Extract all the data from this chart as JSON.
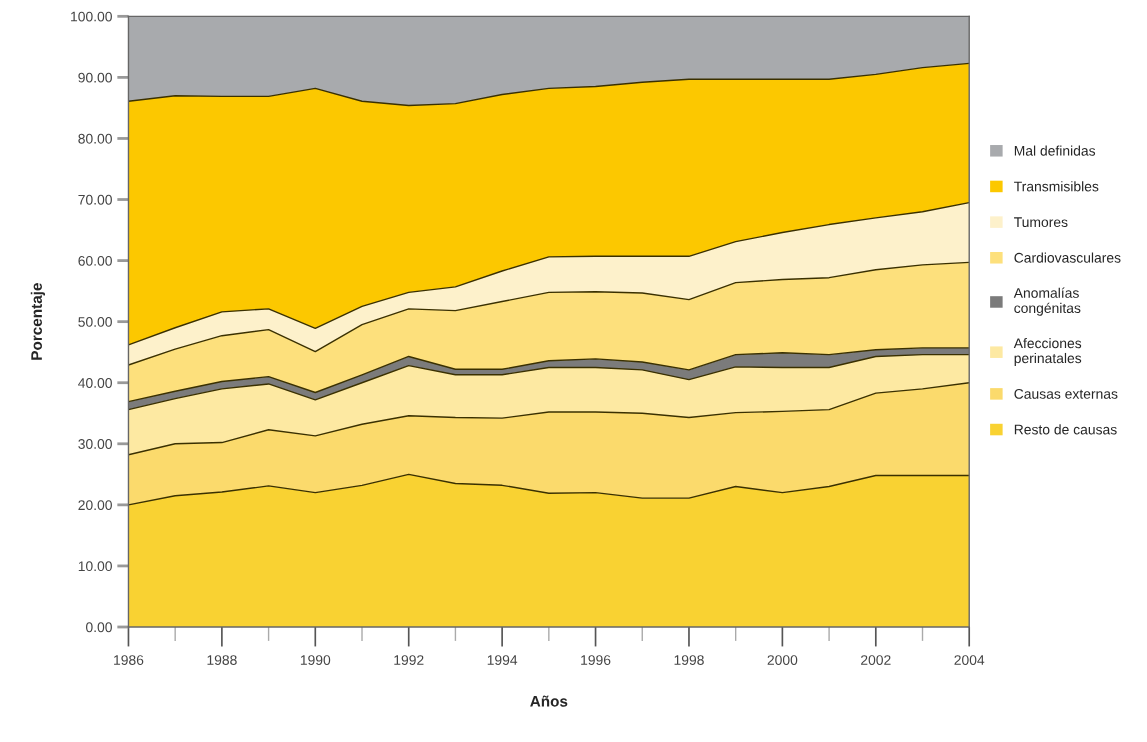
{
  "chart_data": {
    "type": "area",
    "stacked": true,
    "xlabel": "Años",
    "ylabel": "Porcentaje",
    "x": [
      1986,
      1987,
      1988,
      1989,
      1990,
      1991,
      1992,
      1993,
      1994,
      1995,
      1996,
      1997,
      1998,
      1999,
      2000,
      2001,
      2002,
      2003,
      2004
    ],
    "xlim": [
      1986,
      2004
    ],
    "xticks": [
      {
        "value": 1986,
        "label": "1986"
      },
      {
        "value": 1987,
        "label": null
      },
      {
        "value": 1988,
        "label": "1988"
      },
      {
        "value": 1989,
        "label": null
      },
      {
        "value": 1990,
        "label": "1990"
      },
      {
        "value": 1991,
        "label": null
      },
      {
        "value": 1992,
        "label": "1992"
      },
      {
        "value": 1993,
        "label": null
      },
      {
        "value": 1994,
        "label": "1994"
      },
      {
        "value": 1995,
        "label": null
      },
      {
        "value": 1996,
        "label": "1996"
      },
      {
        "value": 1997,
        "label": null
      },
      {
        "value": 1998,
        "label": "1998"
      },
      {
        "value": 1999,
        "label": null
      },
      {
        "value": 2000,
        "label": "2000"
      },
      {
        "value": 2001,
        "label": null
      },
      {
        "value": 2002,
        "label": "2002"
      },
      {
        "value": 2003,
        "label": null
      },
      {
        "value": 2004,
        "label": "2004"
      }
    ],
    "ylim": [
      0,
      100
    ],
    "yticks": [
      {
        "value": 0,
        "label": "0.00"
      },
      {
        "value": 10,
        "label": "10.00"
      },
      {
        "value": 20,
        "label": "20.00"
      },
      {
        "value": 30,
        "label": "30.00"
      },
      {
        "value": 40,
        "label": "40.00"
      },
      {
        "value": 50,
        "label": "50.00"
      },
      {
        "value": 60,
        "label": "60.00"
      },
      {
        "value": 70,
        "label": "70.00"
      },
      {
        "value": 80,
        "label": "80.00"
      },
      {
        "value": 90,
        "label": "90.00"
      },
      {
        "value": 100,
        "label": "100.00"
      }
    ],
    "legend": "right",
    "series": [
      {
        "name": "Resto de causas",
        "color": "#f9d232",
        "values": [
          20.0,
          21.5,
          22.1,
          23.1,
          22.0,
          23.2,
          25.0,
          23.5,
          23.2,
          21.9,
          22.0,
          21.1,
          21.1,
          23.0,
          22.0,
          23.0,
          24.8,
          24.8,
          24.8
        ]
      },
      {
        "name": "Causas externas",
        "color": "#fbda6c",
        "values": [
          8.2,
          8.5,
          8.1,
          9.2,
          9.3,
          10.0,
          9.6,
          10.8,
          11.0,
          13.3,
          13.2,
          13.9,
          13.2,
          12.1,
          13.3,
          12.6,
          13.5,
          14.2,
          15.2
        ]
      },
      {
        "name": "Afecciones\nperinatales",
        "color": "#fde9a2",
        "values": [
          7.4,
          7.4,
          8.8,
          7.5,
          5.9,
          6.8,
          8.2,
          7.0,
          7.1,
          7.3,
          7.3,
          7.1,
          6.2,
          7.5,
          7.2,
          6.9,
          6.0,
          5.6,
          4.6
        ]
      },
      {
        "name": "Anomalías\ncongénitas",
        "color": "#7b7b7b",
        "values": [
          1.3,
          1.2,
          1.2,
          1.2,
          1.2,
          1.3,
          1.5,
          0.9,
          0.9,
          1.1,
          1.4,
          1.3,
          1.6,
          2.0,
          2.4,
          2.1,
          1.1,
          1.1,
          1.1
        ]
      },
      {
        "name": "Cardiovasculares",
        "color": "#fde07c",
        "values": [
          6.0,
          6.9,
          7.5,
          7.7,
          6.7,
          8.2,
          7.8,
          9.6,
          11.1,
          11.2,
          11.0,
          11.3,
          11.5,
          11.8,
          12.0,
          12.6,
          13.1,
          13.6,
          14.0
        ]
      },
      {
        "name": "Tumores",
        "color": "#fdf1cb",
        "values": [
          3.3,
          3.5,
          3.9,
          3.4,
          3.8,
          3.0,
          2.7,
          3.9,
          5.0,
          5.8,
          5.8,
          6.0,
          7.1,
          6.7,
          7.7,
          8.7,
          8.5,
          8.7,
          9.8
        ]
      },
      {
        "name": "Transmisibles",
        "color": "#fcc800",
        "values": [
          39.9,
          38.0,
          35.3,
          34.8,
          39.3,
          33.6,
          30.6,
          30.0,
          28.9,
          27.6,
          27.8,
          28.5,
          29.0,
          26.6,
          25.1,
          23.8,
          23.5,
          23.6,
          22.8
        ]
      },
      {
        "name": "Mal definidas",
        "color": "#a8aaad",
        "values": [
          13.9,
          13.0,
          13.1,
          13.1,
          11.8,
          13.9,
          14.6,
          14.3,
          12.8,
          11.8,
          11.5,
          10.8,
          10.3,
          10.3,
          10.3,
          10.3,
          9.5,
          8.4,
          7.7
        ]
      }
    ]
  }
}
